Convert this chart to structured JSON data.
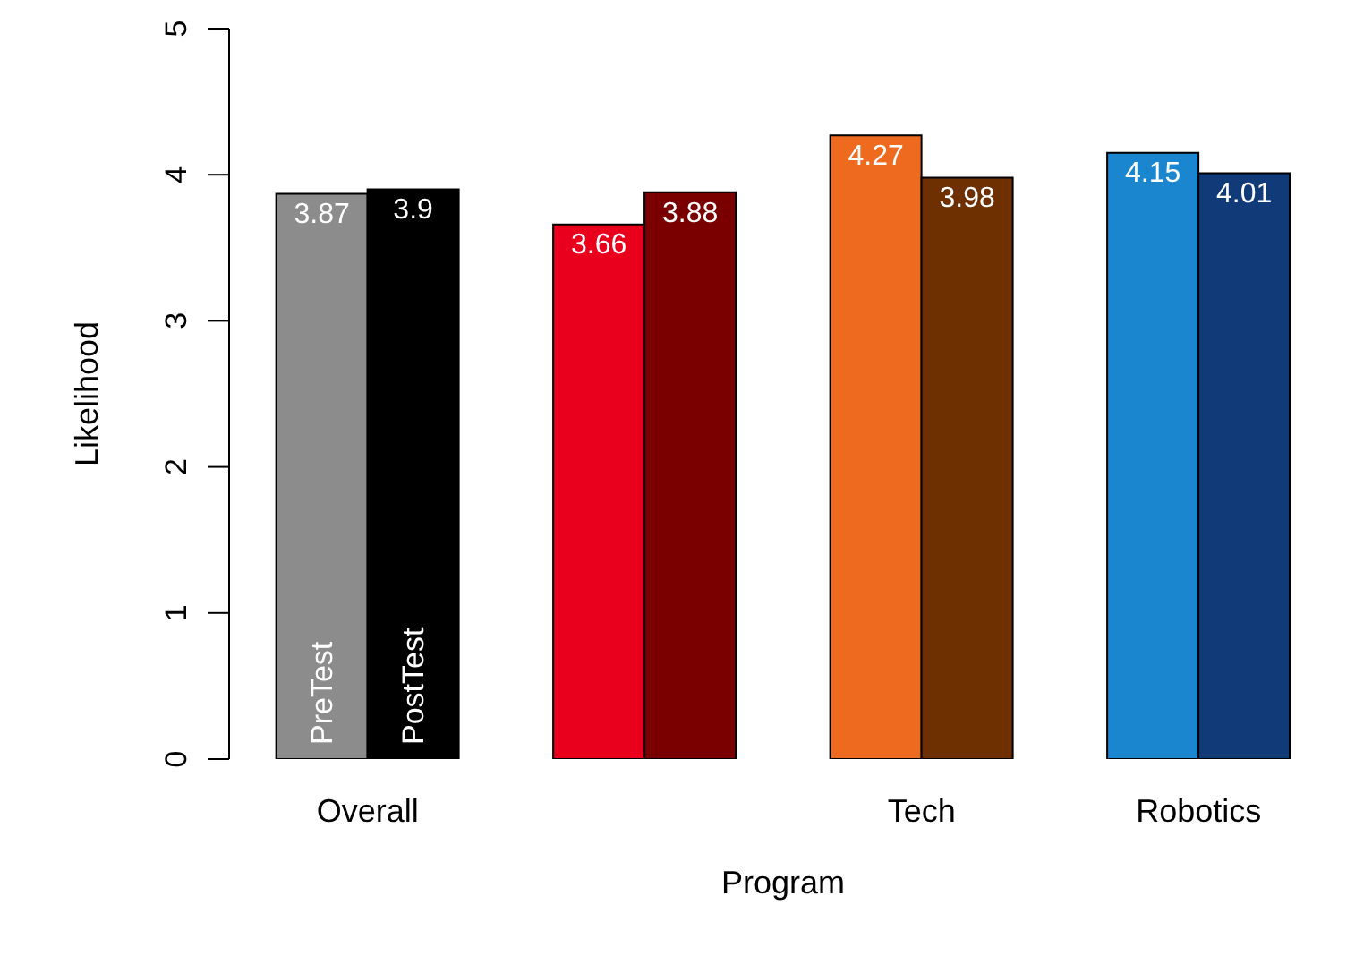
{
  "chart_data": {
    "type": "bar",
    "xlabel": "Program",
    "ylabel": "Likelihood",
    "categories": [
      "Overall",
      null,
      "Tech",
      "Robotics"
    ],
    "series": [
      {
        "name": "PreTest",
        "values": [
          3.87,
          3.66,
          4.27,
          4.15
        ],
        "colors": [
          "#8c8c8c",
          "#e8001c",
          "#ee6a1f",
          "#1a86d0"
        ]
      },
      {
        "name": "PostTest",
        "values": [
          3.9,
          3.88,
          3.98,
          4.01
        ],
        "colors": [
          "#000000",
          "#7a0000",
          "#6e3000",
          "#103a78"
        ]
      }
    ],
    "ylim": [
      0,
      5
    ],
    "yticks": [
      0,
      1,
      2,
      3,
      4,
      5
    ],
    "data_labels": true,
    "grid": false
  }
}
